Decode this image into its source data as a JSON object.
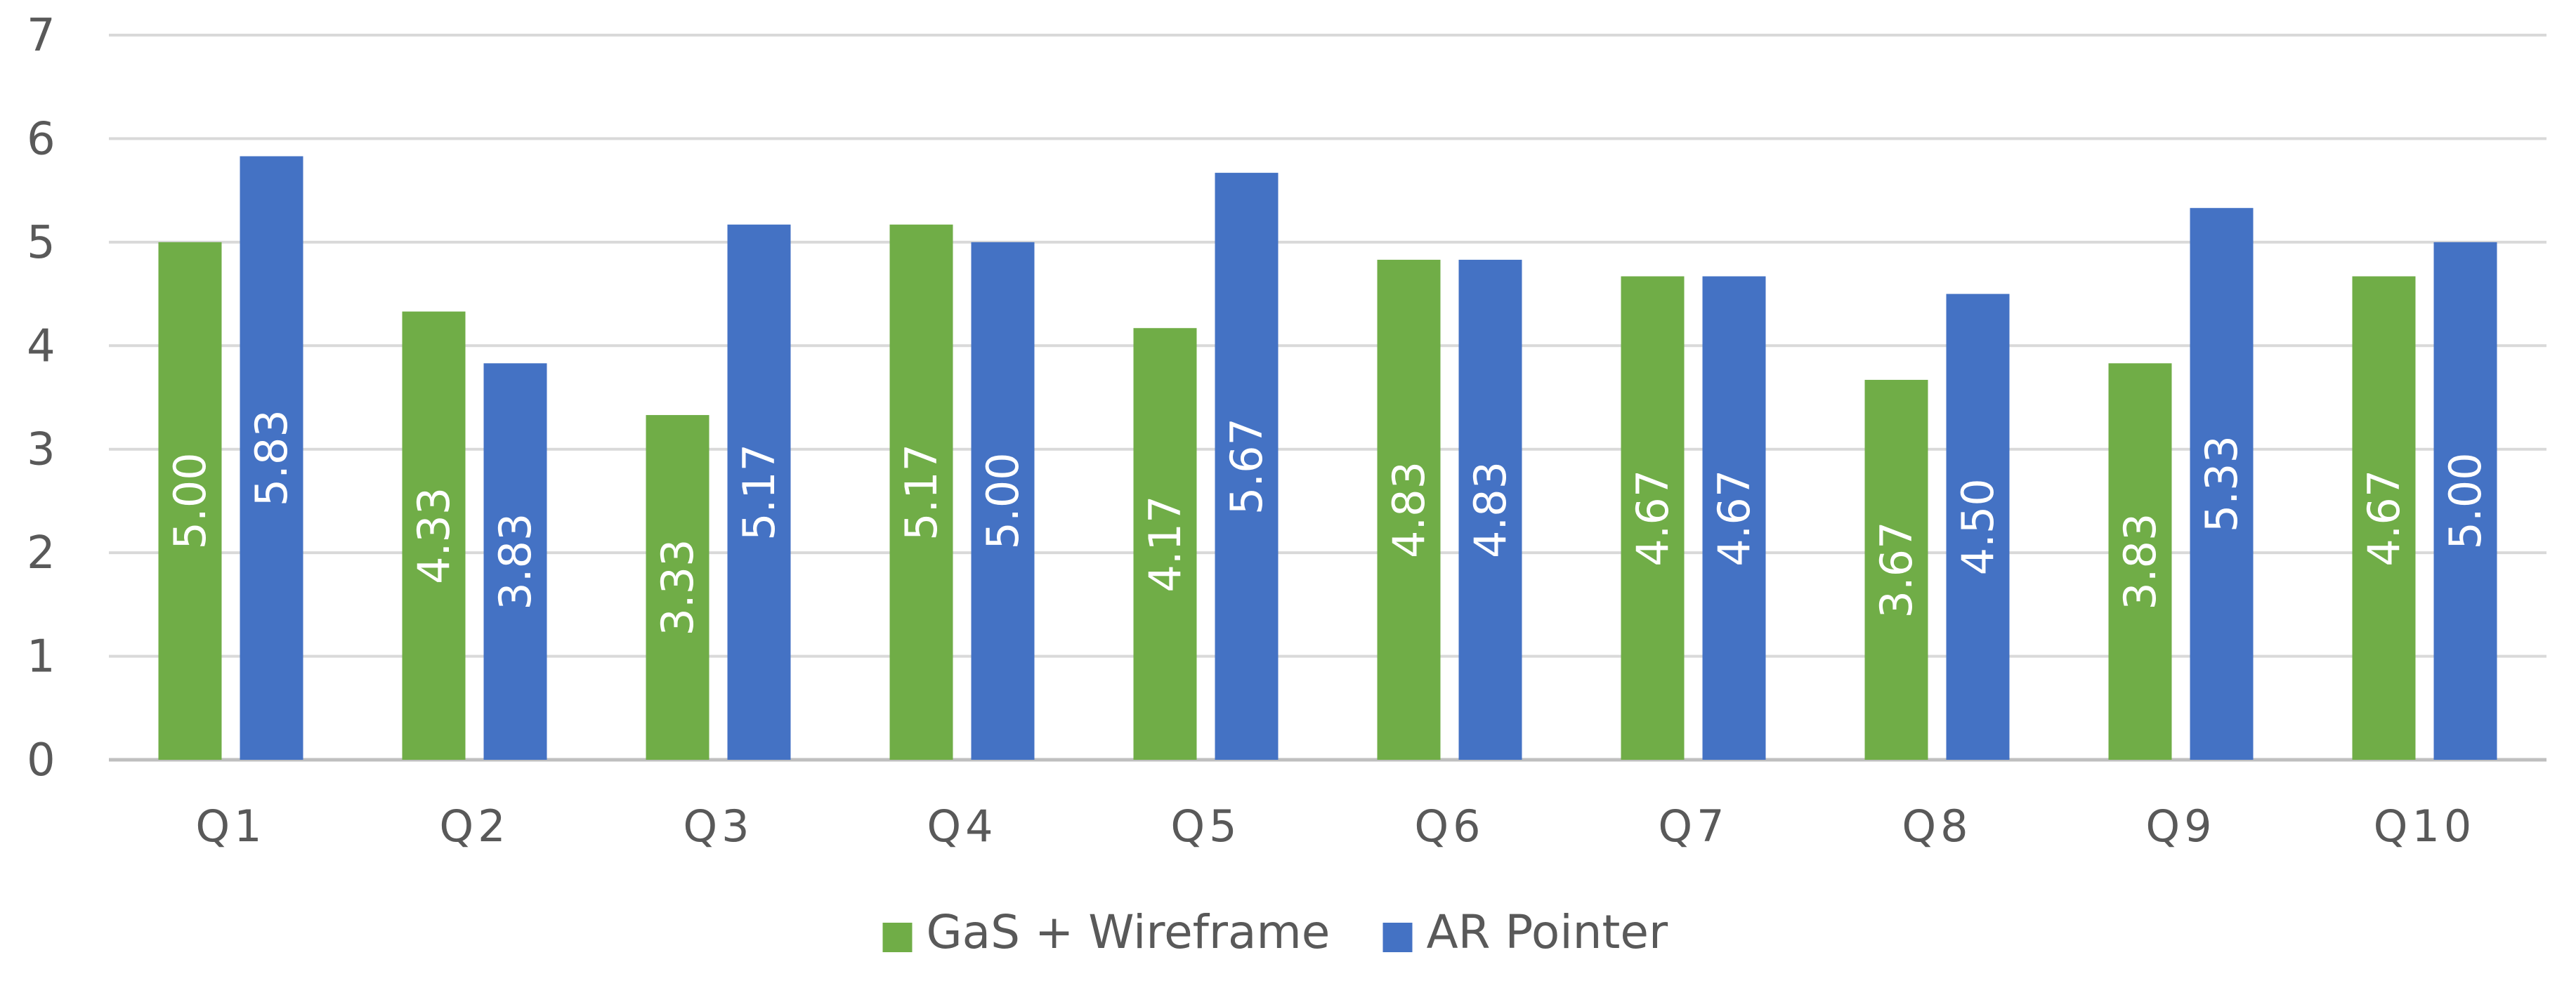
{
  "chart_data": {
    "type": "bar",
    "categories": [
      "Q1",
      "Q2",
      "Q3",
      "Q4",
      "Q5",
      "Q6",
      "Q7",
      "Q8",
      "Q9",
      "Q10"
    ],
    "series": [
      {
        "name": "GaS + Wireframe",
        "color": "#70ad47",
        "values": [
          5.0,
          4.33,
          3.33,
          5.17,
          4.17,
          4.83,
          4.67,
          3.67,
          3.83,
          4.67
        ],
        "labels": [
          "5.00",
          "4.33",
          "3.33",
          "5.17",
          "4.17",
          "4.83",
          "4.67",
          "3.67",
          "3.83",
          "4.67"
        ]
      },
      {
        "name": "AR Pointer",
        "color": "#4472c4",
        "values": [
          5.83,
          3.83,
          5.17,
          5.0,
          5.67,
          4.83,
          4.67,
          4.5,
          5.33,
          5.0
        ],
        "labels": [
          "5.83",
          "3.83",
          "5.17",
          "5.00",
          "5.67",
          "4.83",
          "4.67",
          "4.50",
          "5.33",
          "5.00"
        ]
      }
    ],
    "ylim": [
      0,
      7
    ],
    "yticks": [
      "0",
      "1",
      "2",
      "3",
      "4",
      "5",
      "6",
      "7"
    ],
    "title": "",
    "xlabel": "",
    "ylabel": "",
    "grid": true,
    "gridColor": "#d9d9d9",
    "legend": "bottom-center"
  }
}
